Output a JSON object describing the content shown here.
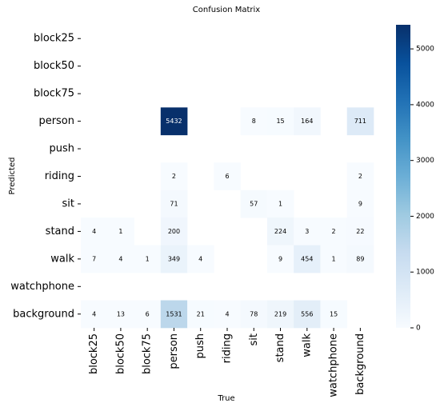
{
  "chart_data": {
    "type": "heatmap",
    "title": "Confusion Matrix",
    "x_label": "True",
    "y_label": "Predicted",
    "categories": [
      "block25",
      "block50",
      "block75",
      "person",
      "push",
      "riding",
      "sit",
      "stand",
      "walk",
      "watchphone",
      "background"
    ],
    "values": [
      [
        null,
        null,
        null,
        null,
        null,
        null,
        null,
        null,
        null,
        null,
        null
      ],
      [
        null,
        null,
        null,
        null,
        null,
        null,
        null,
        null,
        null,
        null,
        null
      ],
      [
        null,
        null,
        null,
        null,
        null,
        null,
        null,
        null,
        null,
        null,
        null
      ],
      [
        null,
        null,
        null,
        5432,
        null,
        null,
        8,
        15,
        164,
        null,
        711
      ],
      [
        null,
        null,
        null,
        null,
        null,
        null,
        null,
        null,
        null,
        null,
        null
      ],
      [
        null,
        null,
        null,
        2,
        null,
        6,
        null,
        null,
        null,
        null,
        2
      ],
      [
        null,
        null,
        null,
        71,
        null,
        null,
        57,
        1,
        null,
        null,
        9
      ],
      [
        4,
        1,
        null,
        200,
        null,
        null,
        null,
        224,
        3,
        2,
        22
      ],
      [
        7,
        4,
        1,
        349,
        4,
        null,
        null,
        9,
        454,
        1,
        89
      ],
      [
        null,
        null,
        null,
        null,
        null,
        null,
        null,
        null,
        null,
        null,
        null
      ],
      [
        4,
        13,
        6,
        1531,
        21,
        4,
        78,
        219,
        556,
        15,
        null
      ]
    ],
    "colors": [
      "#f7fbff",
      "#deebf7",
      "#c6dbef",
      "#9ecae1",
      "#6baed6",
      "#4292c6",
      "#2171b5",
      "#08519c",
      "#08306b"
    ],
    "clim": [
      0,
      5432
    ],
    "cticks": [
      0,
      1000,
      2000,
      3000,
      4000,
      5000
    ]
  }
}
